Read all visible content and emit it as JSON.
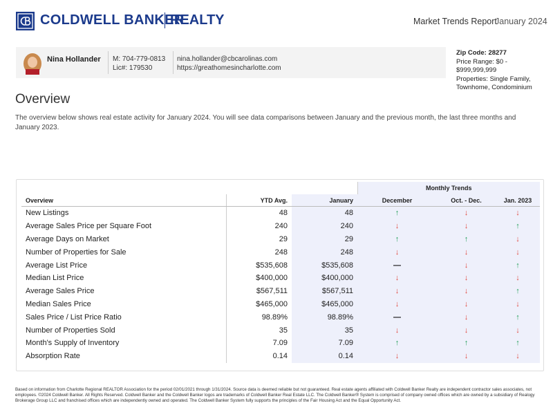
{
  "header": {
    "brand": "COLDWELL BANKER",
    "brand_suffix": "REALTY",
    "report_title": "Market Trends Report",
    "report_date": "January 2024"
  },
  "agent": {
    "name": "Nina Hollander",
    "mobile": "M: 704-779-0813",
    "license": "Lic#: 179530",
    "email": "nina.hollander@cbcarolinas.com",
    "website": "https://greathomesincharlotte.com"
  },
  "filters": {
    "zip_code": "Zip Code: 28277",
    "price_range": "Price Range: $0 - $999,999,999",
    "properties": "Properties: Single Family, Townhome, Condominium"
  },
  "overview": {
    "title": "Overview",
    "description": "The overview below shows real estate activity for January 2024. You will see data comparisons between January and the previous month, the last three months and January 2023."
  },
  "table": {
    "group_header": "Monthly Trends",
    "columns": [
      "Overview",
      "YTD Avg.",
      "January",
      "December",
      "Oct. - Dec.",
      "Jan. 2023"
    ],
    "rows": [
      [
        "New Listings",
        "48",
        "48",
        "↑",
        "↓",
        "↓"
      ],
      [
        "Average Sales Price per Square Foot",
        "240",
        "240",
        "↓",
        "↓",
        "↑"
      ],
      [
        "Average Days on Market",
        "29",
        "29",
        "↑",
        "↑",
        "↓"
      ],
      [
        "Number of Properties for Sale",
        "248",
        "248",
        "↓",
        "↓",
        "↓"
      ],
      [
        "Average List Price",
        "$535,608",
        "$535,608",
        "—",
        "↓",
        "↑"
      ],
      [
        "Median List Price",
        "$400,000",
        "$400,000",
        "↓",
        "↓",
        "↓"
      ],
      [
        "Average Sales Price",
        "$567,511",
        "$567,511",
        "↓",
        "↓",
        "↑"
      ],
      [
        "Median Sales Price",
        "$465,000",
        "$465,000",
        "↓",
        "↓",
        "↓"
      ],
      [
        "Sales Price / List Price Ratio",
        "98.89%",
        "98.89%",
        "—",
        "↓",
        "↑"
      ],
      [
        "Number of Properties Sold",
        "35",
        "35",
        "↓",
        "↓",
        "↓"
      ],
      [
        "Month's Supply of Inventory",
        "7.09",
        "7.09",
        "↑",
        "↑",
        "↑"
      ],
      [
        "Absorption Rate",
        "0.14",
        "0.14",
        "↓",
        "↓",
        "↓"
      ]
    ]
  },
  "trend_styles": [
    {
      "symbol": "↑",
      "color": "#1f9d55"
    },
    {
      "symbol": "↓",
      "color": "#e0453a"
    },
    {
      "symbol": "—",
      "color": "#111111"
    }
  ],
  "footnote": "Based on information from Charlotte Regional REALTOR Association for the period 02/01/2021 through 1/31/2024. Source data is deemed reliable but not guaranteed. Real estate agents affiliated with Coldwell Banker Realty are independent contractor sales associates, not employees. ©2024 Coldwell Banker. All Rights Reserved. Coldwell Banker and the Coldwell Banker logos are trademarks of Coldwell Banker Real Estate LLC. The Coldwell Banker® System is comprised of company owned offices which are owned by a subsidiary of Realogy Brokerage Group LLC and franchised offices which are independently owned and operated. The Coldwell Banker System fully supports the principles of the Fair Housing Act and the Equal Opportunity Act."
}
